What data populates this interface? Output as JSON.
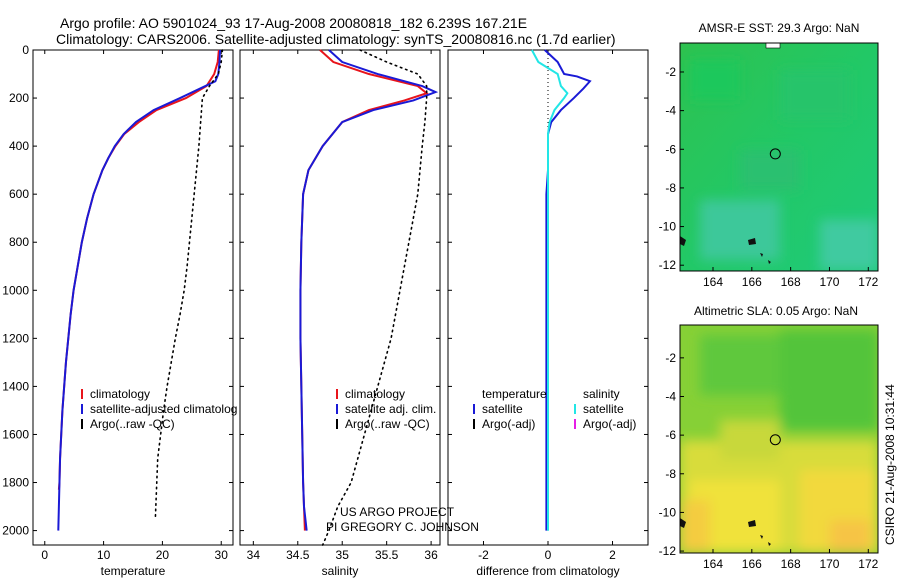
{
  "header": {
    "line1": "Argo profile: AO 5901024_93 17-Aug-2008 20080818_182 6.239S 167.21E",
    "line2": "Climatology: CARS2006. Satellite-adjusted climatology: synTS_20080816.nc (1.7d earlier)"
  },
  "credit": {
    "project": "US ARGO PROJECT",
    "pi": "PI GREGORY C. JOHNSON",
    "stamp": "CSIRO 21-Aug-2008 10:31:44"
  },
  "colors": {
    "clim": "#e8141b",
    "sat": "#1a1ad6",
    "argo": "#000000",
    "satS": "#22e6e6",
    "argoS": "#e61ee6"
  },
  "chart_data": [
    {
      "type": "line",
      "xlabel": "temperature",
      "ylabel": "",
      "xlim": [
        -2,
        32
      ],
      "ylim": [
        2060,
        0
      ],
      "xticks": [
        0,
        10,
        20,
        30
      ],
      "yticks": [
        0,
        200,
        400,
        600,
        800,
        1000,
        1200,
        1400,
        1600,
        1800,
        2000
      ],
      "legend": {
        "position": "lower-right",
        "entries": [
          "climatology",
          "satellite-adjusted climatolog",
          "Argo(..raw -QC)"
        ]
      },
      "series": [
        {
          "name": "climatology",
          "x": [
            29.6,
            29.4,
            28.8,
            27.5,
            24,
            19,
            16,
            13.5,
            12,
            10.8,
            9.8,
            8.3,
            7.2,
            6.3,
            5.6,
            4.9,
            4.4,
            4,
            3.6,
            3.3,
            3,
            2.8,
            2.6,
            2.5,
            2.4
          ],
          "y": [
            0,
            50,
            100,
            150,
            200,
            250,
            300,
            350,
            400,
            450,
            500,
            600,
            700,
            800,
            900,
            1000,
            1100,
            1200,
            1300,
            1400,
            1500,
            1600,
            1700,
            1800,
            1830
          ]
        },
        {
          "name": "satellite-adjusted climatology",
          "x": [
            29.8,
            29.7,
            29.5,
            29,
            23,
            18.5,
            15.5,
            13.4,
            11.9,
            10.8,
            9.8,
            8.3,
            7.2,
            6.3,
            5.6,
            4.9,
            4.4,
            4,
            3.6,
            3.3,
            3,
            2.8,
            2.6,
            2.5,
            2.4,
            2.3
          ],
          "y": [
            0,
            50,
            100,
            130,
            200,
            250,
            300,
            350,
            400,
            450,
            500,
            600,
            700,
            800,
            900,
            1000,
            1100,
            1200,
            1300,
            1400,
            1500,
            1600,
            1700,
            1800,
            1900,
            2000
          ]
        },
        {
          "name": "Argo(..raw -QC)",
          "x": [
            30.2,
            30,
            29.5,
            28,
            26.8,
            26.5,
            26.2,
            25.8,
            25.4,
            25,
            24.6,
            24.2,
            23.7,
            23,
            22.2,
            21.5,
            20.8,
            20.2,
            19.7,
            19.2,
            18.8
          ],
          "y": [
            0,
            50,
            100,
            150,
            200,
            300,
            400,
            500,
            600,
            700,
            800,
            900,
            1000,
            1100,
            1200,
            1300,
            1400,
            1500,
            1600,
            1700,
            1950
          ]
        }
      ]
    },
    {
      "type": "line",
      "xlabel": "salinity",
      "ylabel": "",
      "xlim": [
        33.85,
        36.1
      ],
      "ylim": [
        2060,
        0
      ],
      "xticks": [
        34,
        34.5,
        35,
        35.5,
        36
      ],
      "legend": {
        "position": "lower-right",
        "entries": [
          "climatology",
          "satellite adj. clim.",
          "Argo(..raw -QC)"
        ]
      },
      "series": [
        {
          "name": "climatology",
          "x": [
            34.75,
            34.9,
            35.3,
            35.85,
            35.95,
            35.7,
            35.3,
            35,
            34.78,
            34.62,
            34.56,
            34.54,
            34.53,
            34.53,
            34.54,
            34.55,
            34.56,
            34.57,
            34.58
          ],
          "y": [
            0,
            50,
            100,
            150,
            180,
            210,
            250,
            300,
            400,
            500,
            600,
            800,
            1000,
            1200,
            1400,
            1600,
            1800,
            1900,
            2000
          ]
        },
        {
          "name": "satellite adj. clim.",
          "x": [
            34.85,
            35,
            35.4,
            35.9,
            36.05,
            35.8,
            35.35,
            35,
            34.78,
            34.62,
            34.56,
            34.54,
            34.53,
            34.53,
            34.54,
            34.55,
            34.56,
            34.57,
            34.6
          ],
          "y": [
            0,
            50,
            100,
            150,
            175,
            210,
            250,
            300,
            400,
            500,
            600,
            800,
            1000,
            1200,
            1400,
            1600,
            1800,
            1900,
            2000
          ]
        },
        {
          "name": "Argo(..raw -QC)",
          "x": [
            35.2,
            35.5,
            35.85,
            35.95,
            35.95,
            35.93,
            35.9,
            35.85,
            35.75,
            35.65,
            35.55,
            35.4,
            35.25,
            35.1,
            34.95,
            34.85,
            34.78
          ],
          "y": [
            0,
            50,
            100,
            150,
            200,
            300,
            400,
            600,
            800,
            1000,
            1200,
            1400,
            1600,
            1800,
            1900,
            2000,
            2060
          ]
        }
      ]
    },
    {
      "type": "line",
      "xlabel": "difference from climatology",
      "ylabel": "",
      "xlim": [
        -3.1,
        3.1
      ],
      "ylim": [
        2060,
        0
      ],
      "xticks": [
        -2,
        0,
        2
      ],
      "legend": {
        "position": "lower-center",
        "entries": [
          "temperature",
          "satellite",
          "Argo(-adj)",
          "salinity",
          "satellite",
          "Argo(-adj)"
        ]
      },
      "series": [
        {
          "name": "temperature satellite",
          "x": [
            -0.1,
            0.3,
            0.5,
            0.9,
            1.3,
            1.1,
            0.8,
            0.4,
            0.1,
            0,
            0,
            0,
            -0.05,
            -0.05,
            -0.05,
            -0.05,
            -0.05,
            -0.05,
            -0.05
          ],
          "y": [
            0,
            50,
            100,
            110,
            130,
            160,
            200,
            250,
            300,
            350,
            400,
            500,
            600,
            800,
            1000,
            1200,
            1400,
            1800,
            2000
          ]
        },
        {
          "name": "salinity satellite",
          "x": [
            -0.5,
            -0.3,
            0.3,
            0.4,
            0.6,
            0.5,
            0.2,
            0.05,
            0,
            0,
            0,
            0,
            0,
            0,
            0,
            0
          ],
          "y": [
            0,
            50,
            100,
            150,
            180,
            200,
            250,
            300,
            350,
            400,
            600,
            800,
            1200,
            1600,
            1800,
            2000
          ]
        }
      ]
    },
    {
      "type": "heatmap",
      "title": "AMSR-E SST: 29.3 Argo: NaN",
      "xlim": [
        162.3,
        172.5
      ],
      "ylim": [
        -12.3,
        -0.5
      ],
      "xticks": [
        164,
        166,
        168,
        170,
        172
      ],
      "yticks": [
        -2,
        -4,
        -6,
        -8,
        -10,
        -12
      ],
      "marker": [
        167.21,
        -6.239
      ]
    },
    {
      "type": "heatmap",
      "title": "Altimetric SLA: 0.05 Argo: NaN",
      "xlim": [
        162.3,
        172.5
      ],
      "ylim": [
        -12.1,
        -0.3
      ],
      "xticks": [
        164,
        166,
        168,
        170,
        172
      ],
      "yticks": [
        -2,
        -4,
        -6,
        -8,
        -10,
        -12
      ],
      "marker": [
        167.21,
        -6.239
      ]
    }
  ]
}
